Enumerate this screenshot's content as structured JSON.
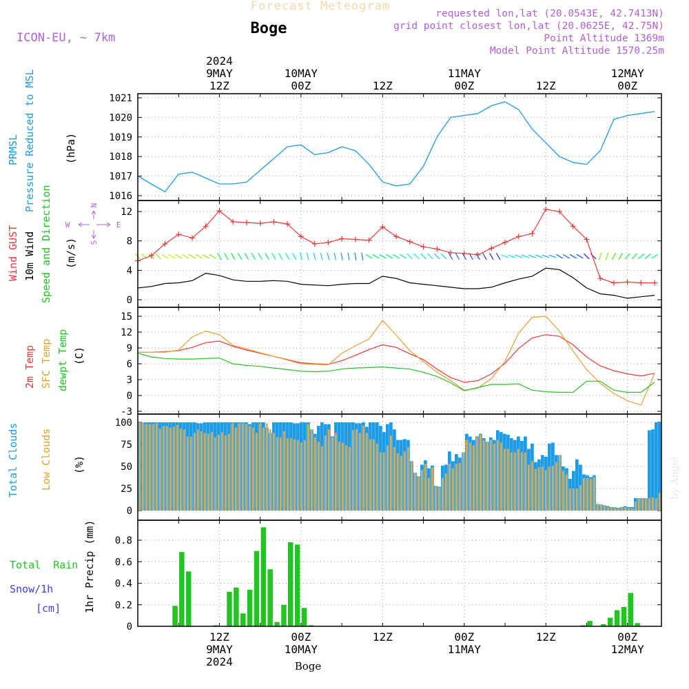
{
  "header": {
    "title_faded": "Forecast Meteogram",
    "location": "Boge",
    "model": "ICON-EU, ~ 7km",
    "requested": "requested lon,lat (20.0543E, 42.7413N)",
    "gridpoint": "grid point closest lon,lat (20.0625E, 42.75N)",
    "point_alt": "Point Altitude 1369m",
    "model_alt": "Model Point Altitude 1570.25m"
  },
  "footer": {
    "location": "Boge",
    "watermark": "by Angel"
  },
  "colors": {
    "pressure": "#1e9be6",
    "gust": "#e83a3a",
    "wind": "#000000",
    "t2m": "#e83a3a",
    "sfc": "#e3a12e",
    "dew": "#22c422",
    "total": "#1e9be6",
    "low": "#d3ac5c",
    "rain": "#22c422",
    "snow": "#4040e0",
    "dir": "#b050d0"
  },
  "time_axis": {
    "top": [
      {
        "lines": [
          "2024",
          "9MAY",
          "12Z"
        ],
        "t": 12
      },
      {
        "lines": [
          "10MAY",
          "00Z"
        ],
        "t": 24
      },
      {
        "lines": [
          "12Z"
        ],
        "t": 36
      },
      {
        "lines": [
          "11MAY",
          "00Z"
        ],
        "t": 48
      },
      {
        "lines": [
          "12Z"
        ],
        "t": 60
      },
      {
        "lines": [
          "12MAY",
          "00Z"
        ],
        "t": 72
      }
    ],
    "bottom": [
      {
        "lines": [
          "12Z",
          "9MAY",
          "2024"
        ],
        "t": 12
      },
      {
        "lines": [
          "00Z",
          "10MAY"
        ],
        "t": 24
      },
      {
        "lines": [
          "12Z"
        ],
        "t": 36
      },
      {
        "lines": [
          "00Z",
          "11MAY"
        ],
        "t": 48
      },
      {
        "lines": [
          "12Z"
        ],
        "t": 60
      },
      {
        "lines": [
          "00Z",
          "12MAY"
        ],
        "t": 72
      }
    ]
  },
  "panels": {
    "pressure": {
      "labels": [
        "PRMSL",
        "Pressure Reduced to MSL"
      ],
      "unit": "(hPa)"
    },
    "wind": {
      "labels": [
        "Wind GUST",
        "10m Wind",
        "Speed and Direction"
      ],
      "unit": "(m/s)",
      "compass": {
        "n": "N",
        "s": "S",
        "w": "W",
        "e": "E"
      }
    },
    "temp": {
      "labels": [
        "2m Temp",
        "SFC Temp",
        "dewpt Temp"
      ],
      "unit": "(C)"
    },
    "clouds": {
      "labels": [
        "Total Clouds",
        "Low Clouds"
      ],
      "unit": "(%)"
    },
    "precip": {
      "labels": [
        "Total  Rain",
        "Snow/1h",
        "[cm]"
      ],
      "unit": "1hr Precip (mm)"
    }
  },
  "chart_data": [
    {
      "type": "line",
      "name": "pressure",
      "ylabel": "(hPa)",
      "ylim": [
        1016,
        1021
      ],
      "yticks": [
        1016,
        1017,
        1018,
        1019,
        1020,
        1021
      ],
      "x": [
        0,
        2,
        4,
        6,
        8,
        10,
        12,
        14,
        16,
        18,
        20,
        22,
        24,
        26,
        28,
        30,
        32,
        34,
        36,
        38,
        40,
        42,
        44,
        46,
        48,
        50,
        52,
        54,
        56,
        58,
        60,
        62,
        64,
        66,
        68,
        70,
        72,
        74,
        76
      ],
      "series": [
        {
          "name": "PRMSL",
          "values": [
            1017.0,
            1016.6,
            1016.2,
            1017.1,
            1017.2,
            1016.9,
            1016.6,
            1016.6,
            1016.7,
            1017.3,
            1017.9,
            1018.5,
            1018.6,
            1018.1,
            1018.2,
            1018.5,
            1018.3,
            1017.6,
            1016.7,
            1016.5,
            1016.6,
            1017.5,
            1019.0,
            1020.0,
            1020.1,
            1020.2,
            1020.6,
            1020.8,
            1020.4,
            1019.4,
            1018.7,
            1018.0,
            1017.7,
            1017.6,
            1018.3,
            1019.9,
            1020.1,
            1020.2,
            1020.3
          ]
        }
      ]
    },
    {
      "type": "line",
      "name": "wind",
      "ylabel": "(m/s)",
      "ylim": [
        0,
        12.8
      ],
      "yticks": [
        0,
        4,
        8,
        12
      ],
      "x": [
        0,
        2,
        4,
        6,
        8,
        10,
        12,
        14,
        16,
        18,
        20,
        22,
        24,
        26,
        28,
        30,
        32,
        34,
        36,
        38,
        40,
        42,
        44,
        46,
        48,
        50,
        52,
        54,
        56,
        58,
        60,
        62,
        64,
        66,
        68,
        70,
        72,
        74,
        76
      ],
      "series": [
        {
          "name": "Wind GUST",
          "values": [
            5.3,
            6.0,
            7.6,
            8.9,
            8.4,
            10.0,
            12.1,
            10.6,
            10.5,
            10.4,
            10.6,
            10.3,
            8.6,
            7.6,
            7.8,
            8.3,
            8.2,
            8.1,
            9.9,
            8.6,
            7.9,
            7.2,
            6.9,
            6.4,
            6.3,
            6.1,
            7.0,
            7.8,
            8.6,
            9.0,
            12.3,
            12.0,
            10.0,
            8.2,
            2.9,
            2.3,
            2.4,
            2.3,
            2.3
          ]
        },
        {
          "name": "10m Wind",
          "values": [
            1.6,
            1.8,
            2.2,
            2.3,
            2.6,
            3.6,
            3.3,
            2.7,
            2.5,
            2.5,
            2.6,
            2.5,
            2.1,
            2.0,
            1.9,
            2.1,
            2.2,
            2.2,
            3.2,
            2.9,
            2.3,
            2.1,
            1.9,
            1.7,
            1.5,
            1.5,
            1.7,
            2.3,
            2.8,
            3.2,
            4.3,
            4.1,
            3.0,
            1.6,
            0.8,
            0.6,
            0.2,
            0.4,
            0.6
          ]
        }
      ],
      "direction_deg": [
        315,
        315,
        300,
        300,
        300,
        300,
        330,
        330,
        330,
        330,
        330,
        330,
        345,
        345,
        345,
        350,
        350,
        300,
        300,
        300,
        315,
        315,
        315,
        330,
        330,
        330,
        330,
        290,
        290,
        290,
        290,
        300,
        300,
        315,
        200,
        210,
        220,
        230,
        240
      ]
    },
    {
      "type": "line",
      "name": "temp",
      "ylabel": "(C)",
      "ylim": [
        -3,
        16
      ],
      "yticks": [
        -3,
        0,
        3,
        6,
        9,
        12,
        15
      ],
      "x": [
        0,
        2,
        4,
        6,
        8,
        10,
        12,
        14,
        16,
        18,
        20,
        22,
        24,
        26,
        28,
        30,
        32,
        34,
        36,
        38,
        40,
        42,
        44,
        46,
        48,
        50,
        52,
        54,
        56,
        58,
        60,
        62,
        64,
        66,
        68,
        70,
        72,
        74,
        76
      ],
      "series": [
        {
          "name": "2m Temp",
          "values": [
            8.2,
            8.2,
            8.3,
            8.5,
            9.1,
            10.0,
            10.3,
            9.3,
            8.6,
            8.0,
            7.4,
            6.8,
            6.2,
            6.0,
            5.9,
            6.6,
            7.6,
            8.7,
            9.6,
            9.1,
            7.9,
            6.8,
            5.0,
            3.4,
            2.5,
            2.8,
            4.1,
            6.1,
            8.9,
            10.9,
            11.5,
            11.2,
            9.6,
            7.3,
            5.6,
            4.7,
            4.1,
            3.7,
            4.2
          ]
        },
        {
          "name": "SFC Temp",
          "values": [
            8.2,
            8.2,
            8.2,
            8.6,
            11.1,
            12.2,
            11.5,
            9.5,
            8.8,
            8.1,
            7.4,
            6.7,
            6.0,
            5.9,
            5.8,
            8.0,
            9.4,
            10.7,
            14.2,
            11.4,
            8.5,
            6.4,
            4.4,
            2.8,
            1.0,
            1.4,
            3.2,
            6.5,
            11.8,
            14.8,
            15.0,
            12.2,
            8.4,
            4.9,
            2.3,
            0.4,
            -1.0,
            -1.8,
            4.2
          ]
        },
        {
          "name": "dewpt Temp",
          "values": [
            8.0,
            7.3,
            7.0,
            6.9,
            6.9,
            7.0,
            7.1,
            6.0,
            5.7,
            5.5,
            5.2,
            4.9,
            4.6,
            4.5,
            4.6,
            5.0,
            5.2,
            5.3,
            5.4,
            5.2,
            5.0,
            4.4,
            3.6,
            2.4,
            0.9,
            1.5,
            2.1,
            2.1,
            2.2,
            1.0,
            0.7,
            0.6,
            0.6,
            2.7,
            2.7,
            1.0,
            0.6,
            0.6,
            2.5
          ]
        }
      ]
    },
    {
      "type": "bar",
      "name": "clouds",
      "ylabel": "(%)",
      "ylim": [
        0,
        100
      ],
      "yticks": [
        0,
        25,
        50,
        75,
        100
      ],
      "series": [
        {
          "name": "Total Clouds",
          "values": [
            100,
            100,
            100,
            100,
            100,
            100,
            100,
            100,
            100,
            100,
            100,
            100,
            100,
            100,
            100,
            100,
            100,
            99,
            99,
            100,
            100,
            100,
            100,
            100,
            100,
            100,
            100,
            100,
            100,
            100,
            100,
            100,
            98,
            100,
            100,
            100,
            100,
            94,
            88,
            100,
            100,
            100,
            100,
            100,
            100,
            99,
            99,
            100,
            100,
            100,
            92,
            87,
            96,
            100,
            98,
            98,
            84,
            100,
            100,
            100,
            100,
            100,
            100,
            99,
            99,
            100,
            95,
            100,
            100,
            100,
            96,
            89,
            98,
            100,
            92,
            80,
            80,
            81,
            80,
            56,
            43,
            39,
            52,
            57,
            48,
            51,
            28,
            27,
            51,
            52,
            67,
            56,
            64,
            60,
            66,
            87,
            84,
            80,
            84,
            87,
            82,
            78,
            83,
            80,
            91,
            89,
            87,
            86,
            82,
            80,
            84,
            79,
            84,
            70,
            76,
            55,
            58,
            63,
            61,
            76,
            77,
            63,
            63,
            50,
            48,
            36,
            45,
            58,
            52,
            41,
            40,
            38,
            40,
            7,
            7,
            6,
            5,
            4,
            4,
            3,
            4,
            5,
            4,
            4,
            14,
            14,
            14,
            14,
            91,
            92,
            100,
            100
          ]
        },
        {
          "name": "Low Clouds",
          "values": [
            100,
            100,
            98,
            98,
            98,
            99,
            93,
            96,
            96,
            94,
            95,
            97,
            93,
            92,
            84,
            84,
            88,
            92,
            90,
            88,
            87,
            89,
            83,
            86,
            89,
            85,
            87,
            99,
            94,
            99,
            99,
            98,
            96,
            94,
            88,
            99,
            94,
            99,
            92,
            88,
            83,
            83,
            90,
            82,
            82,
            81,
            80,
            77,
            80,
            98,
            92,
            83,
            78,
            73,
            85,
            92,
            83,
            88,
            78,
            77,
            74,
            72,
            91,
            92,
            88,
            96,
            88,
            81,
            81,
            76,
            66,
            66,
            74,
            85,
            72,
            65,
            62,
            67,
            72,
            56,
            43,
            39,
            46,
            53,
            37,
            49,
            28,
            26,
            37,
            42,
            53,
            48,
            53,
            54,
            66,
            80,
            77,
            74,
            83,
            86,
            80,
            78,
            80,
            76,
            80,
            77,
            70,
            70,
            66,
            66,
            70,
            66,
            66,
            52,
            56,
            47,
            49,
            50,
            46,
            50,
            51,
            55,
            63,
            45,
            41,
            25,
            25,
            25,
            29,
            37,
            37,
            36,
            38,
            8,
            7,
            6,
            4,
            4,
            4,
            2,
            4,
            4,
            3,
            3,
            10,
            14,
            14,
            14,
            14,
            15,
            14,
            20
          ]
        }
      ]
    },
    {
      "type": "bar",
      "name": "precip",
      "ylabel": "1hr Precip (mm)",
      "ylim": [
        0,
        0.98
      ],
      "yticks": [
        0,
        0.2,
        0.4,
        0.6,
        0.8
      ],
      "series": [
        {
          "name": "Total Rain",
          "values": [
            0,
            0,
            0,
            0,
            0,
            0.19,
            0.69,
            0.51,
            0,
            0,
            0,
            0.01,
            0,
            0.32,
            0.36,
            0.12,
            0.34,
            0.7,
            0.92,
            0.53,
            0.04,
            0.2,
            0.78,
            0.76,
            0.17,
            0.01,
            0,
            0,
            0,
            0,
            0,
            0,
            0,
            0,
            0,
            0,
            0,
            0,
            0,
            0,
            0,
            0,
            0,
            0,
            0,
            0,
            0,
            0,
            0,
            0,
            0,
            0,
            0,
            0,
            0,
            0,
            0,
            0,
            0,
            0,
            0,
            0,
            0,
            0,
            0,
            0.01,
            0.05,
            0,
            0.02,
            0.08,
            0.15,
            0.18,
            0.31,
            0.03,
            0,
            0
          ]
        }
      ]
    }
  ]
}
